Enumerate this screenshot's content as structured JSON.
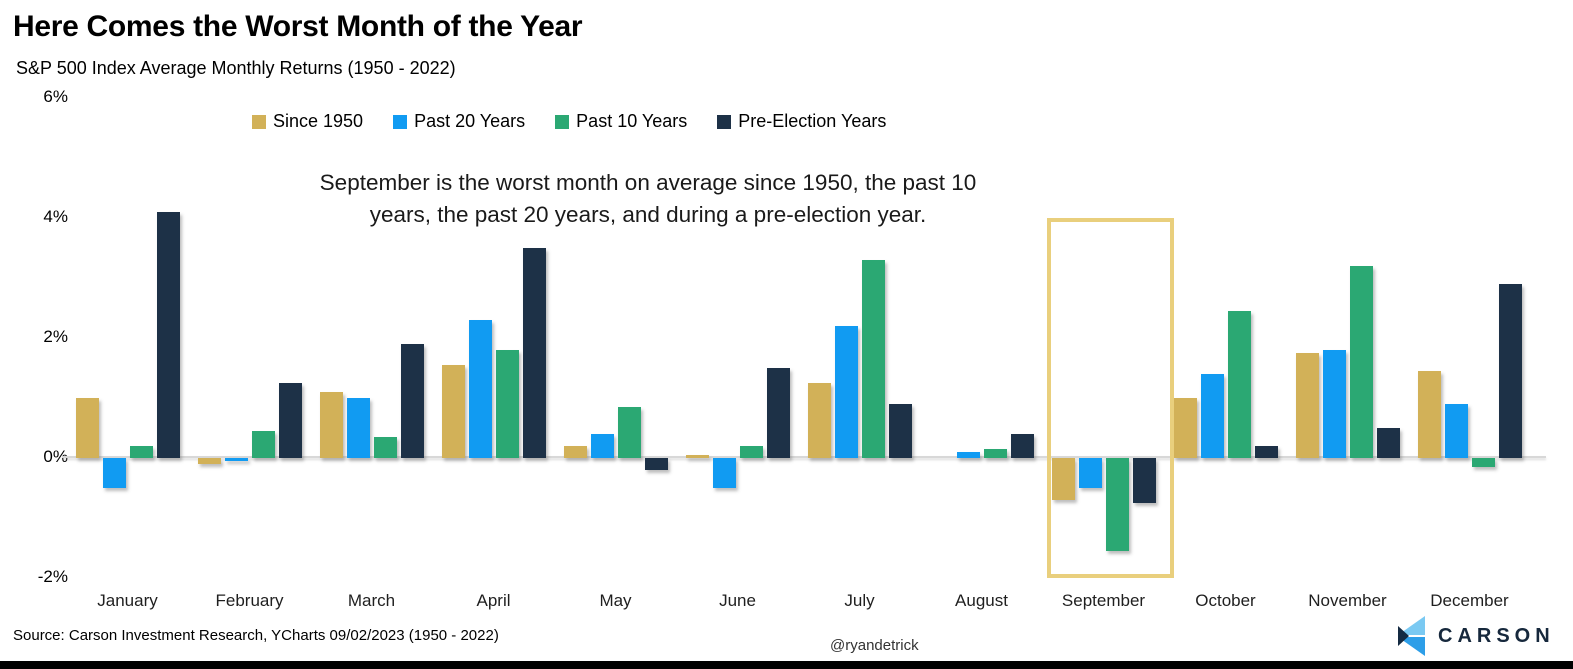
{
  "header": {
    "title": "Here Comes the Worst Month of the Year",
    "subtitle": "S&P 500 Index Average Monthly Returns (1950 - 2022)"
  },
  "annotation": {
    "line1": "September is the worst month on average since 1950, the past 10",
    "line2": "years, the past 20 years, and during a pre-election year."
  },
  "chart_data": {
    "type": "bar",
    "title": "Here Comes the Worst Month of the Year",
    "subtitle": "S&P 500 Index Average Monthly Returns (1950 - 2022)",
    "categories": [
      "January",
      "February",
      "March",
      "April",
      "May",
      "June",
      "July",
      "August",
      "September",
      "October",
      "November",
      "December"
    ],
    "series": [
      {
        "name": "Since 1950",
        "color": "#d2b158",
        "values": [
          1.0,
          -0.1,
          1.1,
          1.55,
          0.2,
          0.05,
          1.25,
          0.0,
          -0.7,
          1.0,
          1.75,
          1.45
        ]
      },
      {
        "name": "Past 20 Years",
        "color": "#119bf2",
        "values": [
          -0.5,
          -0.05,
          1.0,
          2.3,
          0.4,
          -0.5,
          2.2,
          0.1,
          -0.5,
          1.4,
          1.8,
          0.9
        ]
      },
      {
        "name": "Past 10 Years",
        "color": "#2ba873",
        "values": [
          0.2,
          0.45,
          0.35,
          1.8,
          0.85,
          0.2,
          3.3,
          0.15,
          -1.55,
          2.45,
          3.2,
          -0.15
        ]
      },
      {
        "name": "Pre-Election Years",
        "color": "#1d3147",
        "values": [
          4.1,
          1.25,
          1.9,
          3.5,
          -0.2,
          1.5,
          0.9,
          0.4,
          -0.75,
          0.2,
          0.5,
          2.9
        ]
      }
    ],
    "y_ticks": [
      "6%",
      "4%",
      "2%",
      "0%",
      "-2%"
    ],
    "y_axis": {
      "min": -2,
      "max": 6,
      "unit": "%"
    },
    "grid": "zero-line-only",
    "legend_position": "top",
    "highlighted_category": "September",
    "highlight_color": "#e9cf7d"
  },
  "footer": {
    "source": "Source: Carson Investment Research, YCharts 09/02/2023 (1950 - 2022)",
    "handle": "@ryandetrick",
    "brand": "CARSON"
  }
}
